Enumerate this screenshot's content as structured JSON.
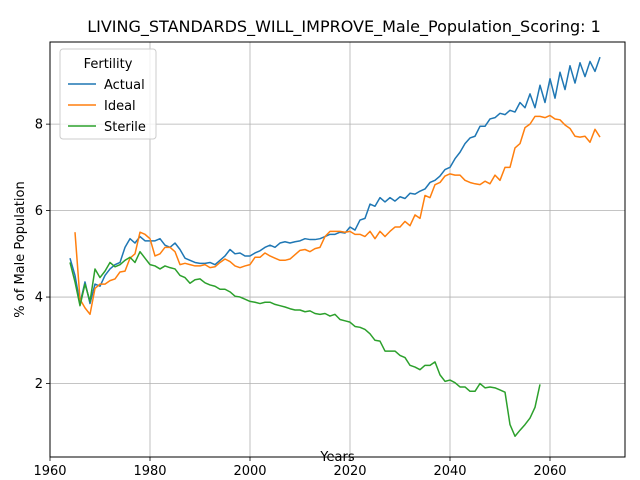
{
  "chart_data": {
    "type": "line",
    "title": "LIVING_STANDARDS_WILL_IMPROVE_Male_Population_Scoring: 1",
    "xlabel": "Years",
    "ylabel": "% of Male Population",
    "xlim": [
      1960,
      2075
    ],
    "ylim": [
      0.3,
      9.9
    ],
    "xticks": [
      1960,
      1980,
      2000,
      2020,
      2040,
      2060
    ],
    "yticks": [
      2,
      4,
      6,
      8
    ],
    "grid": true,
    "legend": {
      "title": "Fertility",
      "placement": "top-left"
    },
    "series": [
      {
        "name": "Actual",
        "color": "#1f77b4",
        "points": [
          [
            1964,
            4.9
          ],
          [
            1965,
            4.5
          ],
          [
            1966,
            3.85
          ],
          [
            1967,
            4.35
          ],
          [
            1968,
            3.85
          ],
          [
            1969,
            4.3
          ],
          [
            1970,
            4.25
          ],
          [
            1971,
            4.5
          ],
          [
            1972,
            4.65
          ],
          [
            1973,
            4.75
          ],
          [
            1974,
            4.8
          ],
          [
            1975,
            5.15
          ],
          [
            1976,
            5.35
          ],
          [
            1977,
            5.25
          ],
          [
            1978,
            5.4
          ],
          [
            1979,
            5.3
          ],
          [
            1980,
            5.3
          ],
          [
            1981,
            5.3
          ],
          [
            1982,
            5.35
          ],
          [
            1983,
            5.2
          ],
          [
            1984,
            5.15
          ],
          [
            1985,
            5.25
          ],
          [
            1986,
            5.1
          ],
          [
            1987,
            4.9
          ],
          [
            1988,
            4.85
          ],
          [
            1989,
            4.8
          ],
          [
            1990,
            4.78
          ],
          [
            1991,
            4.78
          ],
          [
            1992,
            4.8
          ],
          [
            1993,
            4.75
          ],
          [
            1994,
            4.85
          ],
          [
            1995,
            4.95
          ],
          [
            1996,
            5.1
          ],
          [
            1997,
            5.0
          ],
          [
            1998,
            5.02
          ],
          [
            1999,
            4.95
          ],
          [
            2000,
            4.95
          ],
          [
            2001,
            5.02
          ],
          [
            2002,
            5.07
          ],
          [
            2003,
            5.15
          ],
          [
            2004,
            5.2
          ],
          [
            2005,
            5.15
          ],
          [
            2006,
            5.25
          ],
          [
            2007,
            5.28
          ],
          [
            2008,
            5.25
          ],
          [
            2009,
            5.28
          ],
          [
            2010,
            5.3
          ],
          [
            2011,
            5.35
          ],
          [
            2012,
            5.33
          ],
          [
            2013,
            5.33
          ],
          [
            2014,
            5.35
          ],
          [
            2015,
            5.4
          ],
          [
            2016,
            5.45
          ],
          [
            2017,
            5.45
          ],
          [
            2018,
            5.5
          ],
          [
            2019,
            5.48
          ],
          [
            2020,
            5.62
          ],
          [
            2021,
            5.55
          ],
          [
            2022,
            5.78
          ],
          [
            2023,
            5.82
          ],
          [
            2024,
            6.15
          ],
          [
            2025,
            6.1
          ],
          [
            2026,
            6.3
          ],
          [
            2027,
            6.2
          ],
          [
            2028,
            6.3
          ],
          [
            2029,
            6.22
          ],
          [
            2030,
            6.32
          ],
          [
            2031,
            6.28
          ],
          [
            2032,
            6.4
          ],
          [
            2033,
            6.38
          ],
          [
            2034,
            6.45
          ],
          [
            2035,
            6.5
          ],
          [
            2036,
            6.65
          ],
          [
            2037,
            6.7
          ],
          [
            2038,
            6.8
          ],
          [
            2039,
            6.95
          ],
          [
            2040,
            7.0
          ],
          [
            2041,
            7.2
          ],
          [
            2042,
            7.35
          ],
          [
            2043,
            7.55
          ],
          [
            2044,
            7.68
          ],
          [
            2045,
            7.72
          ],
          [
            2046,
            7.95
          ],
          [
            2047,
            7.95
          ],
          [
            2048,
            8.12
          ],
          [
            2049,
            8.15
          ],
          [
            2050,
            8.25
          ],
          [
            2051,
            8.22
          ],
          [
            2052,
            8.32
          ],
          [
            2053,
            8.28
          ],
          [
            2054,
            8.5
          ],
          [
            2055,
            8.38
          ],
          [
            2056,
            8.7
          ],
          [
            2057,
            8.38
          ],
          [
            2058,
            8.9
          ],
          [
            2059,
            8.5
          ],
          [
            2060,
            9.05
          ],
          [
            2061,
            8.6
          ],
          [
            2062,
            9.2
          ],
          [
            2063,
            8.8
          ],
          [
            2064,
            9.35
          ],
          [
            2065,
            8.95
          ],
          [
            2066,
            9.42
          ],
          [
            2067,
            9.1
          ],
          [
            2068,
            9.45
          ],
          [
            2069,
            9.22
          ],
          [
            2070,
            9.55
          ]
        ]
      },
      {
        "name": "Ideal",
        "color": "#ff7f0e",
        "points": [
          [
            1965,
            5.5
          ],
          [
            1966,
            3.95
          ],
          [
            1967,
            3.75
          ],
          [
            1968,
            3.6
          ],
          [
            1969,
            4.2
          ],
          [
            1970,
            4.3
          ],
          [
            1971,
            4.3
          ],
          [
            1972,
            4.38
          ],
          [
            1973,
            4.42
          ],
          [
            1974,
            4.58
          ],
          [
            1975,
            4.6
          ],
          [
            1976,
            4.9
          ],
          [
            1977,
            5.0
          ],
          [
            1978,
            5.5
          ],
          [
            1979,
            5.45
          ],
          [
            1980,
            5.35
          ],
          [
            1981,
            4.95
          ],
          [
            1982,
            5.0
          ],
          [
            1983,
            5.15
          ],
          [
            1984,
            5.15
          ],
          [
            1985,
            5.05
          ],
          [
            1986,
            4.75
          ],
          [
            1987,
            4.78
          ],
          [
            1988,
            4.75
          ],
          [
            1989,
            4.72
          ],
          [
            1990,
            4.72
          ],
          [
            1991,
            4.75
          ],
          [
            1992,
            4.68
          ],
          [
            1993,
            4.7
          ],
          [
            1994,
            4.8
          ],
          [
            1995,
            4.88
          ],
          [
            1996,
            4.82
          ],
          [
            1997,
            4.72
          ],
          [
            1998,
            4.68
          ],
          [
            1999,
            4.72
          ],
          [
            2000,
            4.75
          ],
          [
            2001,
            4.92
          ],
          [
            2002,
            4.92
          ],
          [
            2003,
            5.02
          ],
          [
            2004,
            4.95
          ],
          [
            2005,
            4.9
          ],
          [
            2006,
            4.85
          ],
          [
            2007,
            4.85
          ],
          [
            2008,
            4.88
          ],
          [
            2009,
            4.98
          ],
          [
            2010,
            5.08
          ],
          [
            2011,
            5.1
          ],
          [
            2012,
            5.05
          ],
          [
            2013,
            5.12
          ],
          [
            2014,
            5.15
          ],
          [
            2015,
            5.4
          ],
          [
            2016,
            5.52
          ],
          [
            2017,
            5.52
          ],
          [
            2018,
            5.52
          ],
          [
            2019,
            5.5
          ],
          [
            2020,
            5.52
          ],
          [
            2021,
            5.45
          ],
          [
            2022,
            5.45
          ],
          [
            2023,
            5.4
          ],
          [
            2024,
            5.52
          ],
          [
            2025,
            5.35
          ],
          [
            2026,
            5.52
          ],
          [
            2027,
            5.4
          ],
          [
            2028,
            5.52
          ],
          [
            2029,
            5.62
          ],
          [
            2030,
            5.62
          ],
          [
            2031,
            5.75
          ],
          [
            2032,
            5.65
          ],
          [
            2033,
            5.9
          ],
          [
            2034,
            5.82
          ],
          [
            2035,
            6.35
          ],
          [
            2036,
            6.3
          ],
          [
            2037,
            6.6
          ],
          [
            2038,
            6.65
          ],
          [
            2039,
            6.8
          ],
          [
            2040,
            6.85
          ],
          [
            2041,
            6.82
          ],
          [
            2042,
            6.82
          ],
          [
            2043,
            6.7
          ],
          [
            2044,
            6.65
          ],
          [
            2045,
            6.62
          ],
          [
            2046,
            6.6
          ],
          [
            2047,
            6.68
          ],
          [
            2048,
            6.62
          ],
          [
            2049,
            6.82
          ],
          [
            2050,
            6.7
          ],
          [
            2051,
            7.0
          ],
          [
            2052,
            7.0
          ],
          [
            2053,
            7.45
          ],
          [
            2054,
            7.55
          ],
          [
            2055,
            7.92
          ],
          [
            2056,
            8.0
          ],
          [
            2057,
            8.18
          ],
          [
            2058,
            8.18
          ],
          [
            2059,
            8.15
          ],
          [
            2060,
            8.2
          ],
          [
            2061,
            8.12
          ],
          [
            2062,
            8.1
          ],
          [
            2063,
            7.98
          ],
          [
            2064,
            7.9
          ],
          [
            2065,
            7.72
          ],
          [
            2066,
            7.7
          ],
          [
            2067,
            7.72
          ],
          [
            2068,
            7.58
          ],
          [
            2069,
            7.88
          ],
          [
            2070,
            7.7
          ]
        ]
      },
      {
        "name": "Sterile",
        "color": "#2ca02c",
        "points": [
          [
            1964,
            4.8
          ],
          [
            1965,
            4.35
          ],
          [
            1966,
            3.8
          ],
          [
            1967,
            4.3
          ],
          [
            1968,
            3.9
          ],
          [
            1969,
            4.65
          ],
          [
            1970,
            4.45
          ],
          [
            1971,
            4.6
          ],
          [
            1972,
            4.8
          ],
          [
            1973,
            4.7
          ],
          [
            1974,
            4.75
          ],
          [
            1975,
            4.85
          ],
          [
            1976,
            4.92
          ],
          [
            1977,
            4.8
          ],
          [
            1978,
            5.05
          ],
          [
            1979,
            4.9
          ],
          [
            1980,
            4.75
          ],
          [
            1981,
            4.72
          ],
          [
            1982,
            4.65
          ],
          [
            1983,
            4.72
          ],
          [
            1984,
            4.68
          ],
          [
            1985,
            4.65
          ],
          [
            1986,
            4.5
          ],
          [
            1987,
            4.45
          ],
          [
            1988,
            4.32
          ],
          [
            1989,
            4.4
          ],
          [
            1990,
            4.42
          ],
          [
            1991,
            4.33
          ],
          [
            1992,
            4.28
          ],
          [
            1993,
            4.25
          ],
          [
            1994,
            4.18
          ],
          [
            1995,
            4.18
          ],
          [
            1996,
            4.12
          ],
          [
            1997,
            4.02
          ],
          [
            1998,
            4.0
          ],
          [
            1999,
            3.95
          ],
          [
            2000,
            3.9
          ],
          [
            2001,
            3.88
          ],
          [
            2002,
            3.85
          ],
          [
            2003,
            3.88
          ],
          [
            2004,
            3.88
          ],
          [
            2005,
            3.83
          ],
          [
            2006,
            3.8
          ],
          [
            2007,
            3.77
          ],
          [
            2008,
            3.73
          ],
          [
            2009,
            3.7
          ],
          [
            2010,
            3.7
          ],
          [
            2011,
            3.66
          ],
          [
            2012,
            3.68
          ],
          [
            2013,
            3.62
          ],
          [
            2014,
            3.6
          ],
          [
            2015,
            3.62
          ],
          [
            2016,
            3.56
          ],
          [
            2017,
            3.6
          ],
          [
            2018,
            3.48
          ],
          [
            2019,
            3.45
          ],
          [
            2020,
            3.42
          ],
          [
            2021,
            3.32
          ],
          [
            2022,
            3.3
          ],
          [
            2023,
            3.25
          ],
          [
            2024,
            3.15
          ],
          [
            2025,
            3.0
          ],
          [
            2026,
            2.98
          ],
          [
            2027,
            2.75
          ],
          [
            2028,
            2.75
          ],
          [
            2029,
            2.75
          ],
          [
            2030,
            2.65
          ],
          [
            2031,
            2.6
          ],
          [
            2032,
            2.42
          ],
          [
            2033,
            2.38
          ],
          [
            2034,
            2.32
          ],
          [
            2035,
            2.42
          ],
          [
            2036,
            2.42
          ],
          [
            2037,
            2.5
          ],
          [
            2038,
            2.2
          ],
          [
            2039,
            2.05
          ],
          [
            2040,
            2.08
          ],
          [
            2041,
            2.02
          ],
          [
            2042,
            1.92
          ],
          [
            2043,
            1.92
          ],
          [
            2044,
            1.82
          ],
          [
            2045,
            1.82
          ],
          [
            2046,
            2.0
          ],
          [
            2047,
            1.9
          ],
          [
            2048,
            1.92
          ],
          [
            2049,
            1.9
          ],
          [
            2050,
            1.85
          ],
          [
            2051,
            1.8
          ],
          [
            2052,
            1.05
          ],
          [
            2053,
            0.78
          ],
          [
            2054,
            0.92
          ],
          [
            2055,
            1.05
          ],
          [
            2056,
            1.2
          ],
          [
            2057,
            1.45
          ],
          [
            2058,
            1.98
          ]
        ]
      }
    ]
  }
}
